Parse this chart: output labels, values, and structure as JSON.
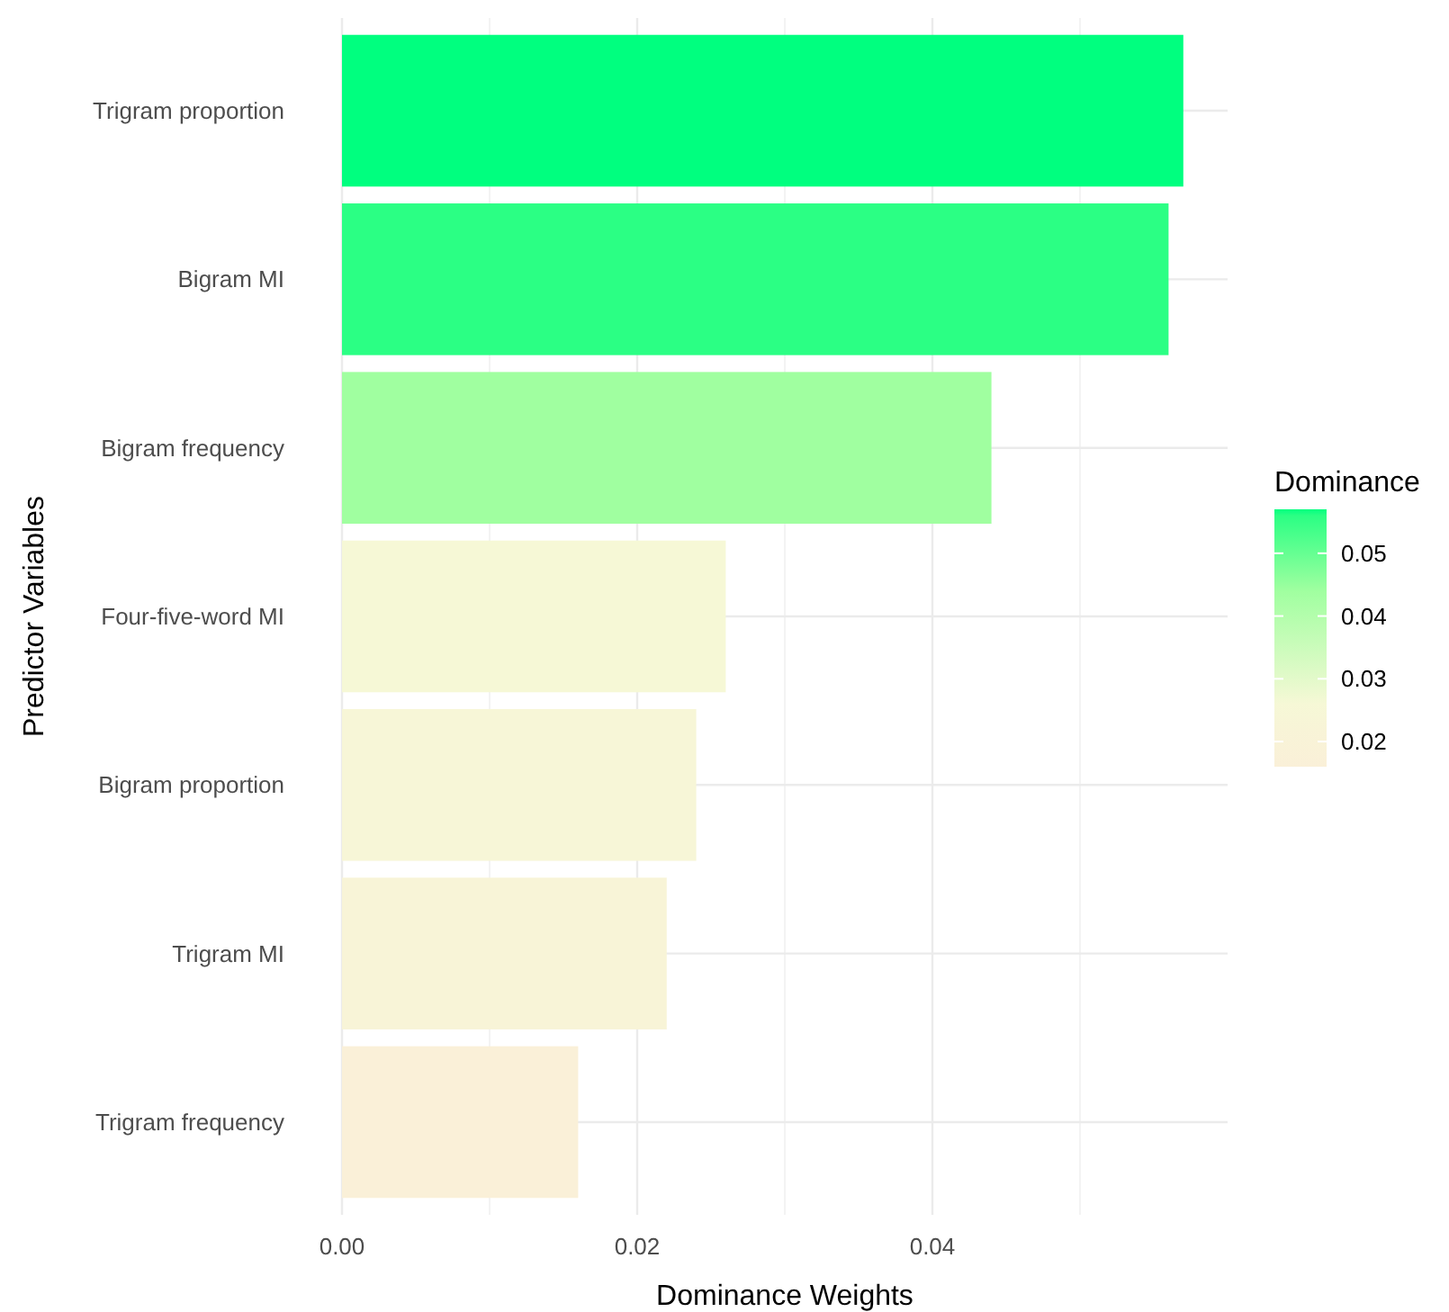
{
  "chart_data": {
    "type": "bar",
    "orientation": "horizontal",
    "xlabel": "Dominance Weights",
    "ylabel": "Predictor Variables",
    "clabel": "Dominance",
    "categories": [
      "Trigram proportion",
      "Bigram MI",
      "Bigram frequency",
      "Four-five-word MI",
      "Bigram proportion",
      "Trigram MI",
      "Trigram frequency"
    ],
    "values": [
      0.057,
      0.056,
      0.044,
      0.026,
      0.024,
      0.022,
      0.016
    ],
    "colors": [
      "#00ff7f",
      "#2bff84",
      "#a0ffa0",
      "#f6f8d6",
      "#f7f6d7",
      "#f8f4d7",
      "#faf0d8"
    ],
    "xlim": [
      0,
      0.06
    ],
    "xticks": [
      {
        "value": 0,
        "label": "0.00"
      },
      {
        "value": 0.02,
        "label": "0.02"
      },
      {
        "value": 0.04,
        "label": "0.04"
      }
    ],
    "clim": [
      0.016,
      0.057
    ],
    "cticks": [
      {
        "value": 0.02,
        "label": "0.02"
      },
      {
        "value": 0.03,
        "label": "0.03"
      },
      {
        "value": 0.04,
        "label": "0.04"
      },
      {
        "value": 0.05,
        "label": "0.05"
      }
    ],
    "grid": true
  }
}
